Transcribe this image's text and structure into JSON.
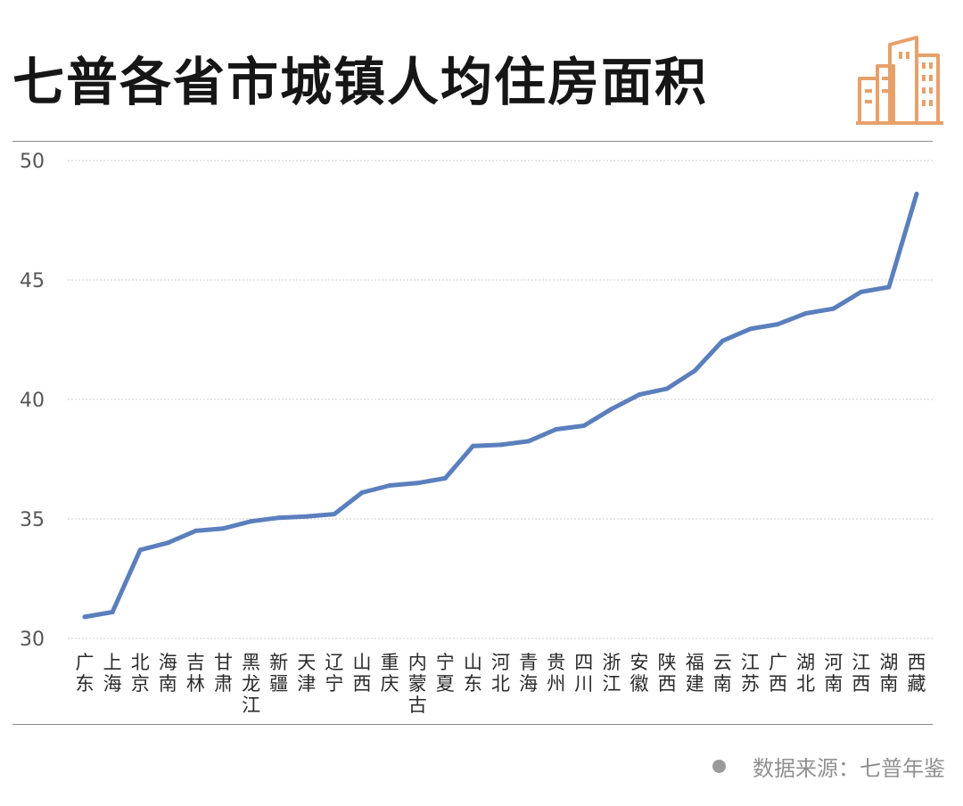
{
  "header": {
    "title": "七普各省市城镇人均住房面积"
  },
  "source": {
    "text": "数据来源：七普年鉴"
  },
  "colors": {
    "line": "#5b7fbd",
    "logo": "#e8a06a",
    "grid": "#cfcfcf"
  },
  "icons": {
    "logo": "buildings-icon"
  },
  "chart_data": {
    "type": "line",
    "categories": [
      "广东",
      "上海",
      "北京",
      "海南",
      "吉林",
      "甘肃",
      "黑龙江",
      "新疆",
      "天津",
      "辽宁",
      "山西",
      "重庆",
      "内蒙古",
      "宁夏",
      "山东",
      "河北",
      "青海",
      "贵州",
      "四川",
      "浙江",
      "安徽",
      "陕西",
      "福建",
      "云南",
      "江苏",
      "广西",
      "湖北",
      "河南",
      "江西",
      "湖南",
      "西藏"
    ],
    "values": [
      30.9,
      31.1,
      33.7,
      34.0,
      34.5,
      34.6,
      34.9,
      35.05,
      35.1,
      35.2,
      36.1,
      36.4,
      36.5,
      36.7,
      38.05,
      38.1,
      38.25,
      38.75,
      38.9,
      39.6,
      40.2,
      40.45,
      41.2,
      42.45,
      42.95,
      43.15,
      43.6,
      43.8,
      44.5,
      44.7,
      48.6
    ],
    "yticks": [
      30,
      35,
      40,
      45,
      50
    ],
    "ylim": [
      30,
      50
    ],
    "grid": true,
    "title": "七普各省市城镇人均住房面积"
  }
}
